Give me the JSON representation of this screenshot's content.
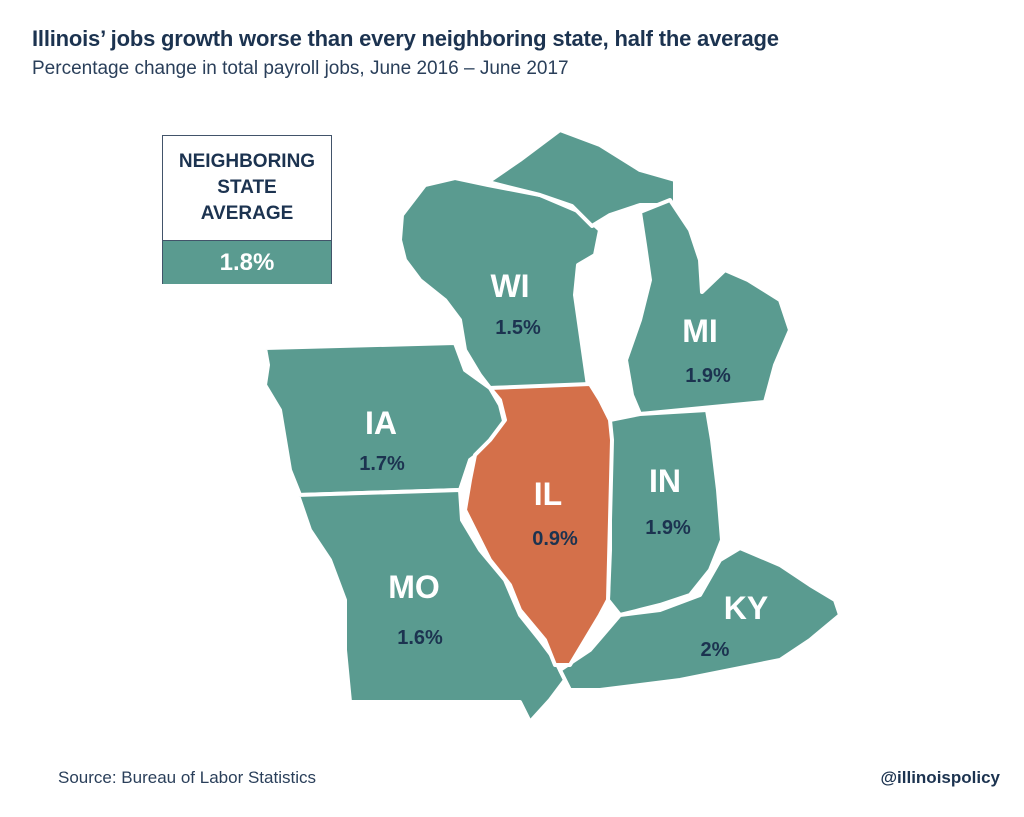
{
  "title": "Illinois’ jobs growth worse than every neighboring state, half the average",
  "subtitle": "Percentage change in total payroll jobs, June 2016 – June 2017",
  "legend": {
    "label": "NEIGHBORING\nSTATE\nAVERAGE",
    "value": "1.8%"
  },
  "colors": {
    "neighbor": "#5a9b90",
    "illinois": "#d4704a",
    "text": "#1c3350",
    "border": "#ffffff"
  },
  "states": [
    {
      "abbr": "WI",
      "value": "1.5%"
    },
    {
      "abbr": "MI",
      "value": "1.9%"
    },
    {
      "abbr": "IA",
      "value": "1.7%"
    },
    {
      "abbr": "IL",
      "value": "0.9%"
    },
    {
      "abbr": "IN",
      "value": "1.9%"
    },
    {
      "abbr": "MO",
      "value": "1.6%"
    },
    {
      "abbr": "KY",
      "value": "2%"
    }
  ],
  "footer": {
    "source": "Source: Bureau of Labor Statistics",
    "handle": "@illinoispolicy"
  }
}
